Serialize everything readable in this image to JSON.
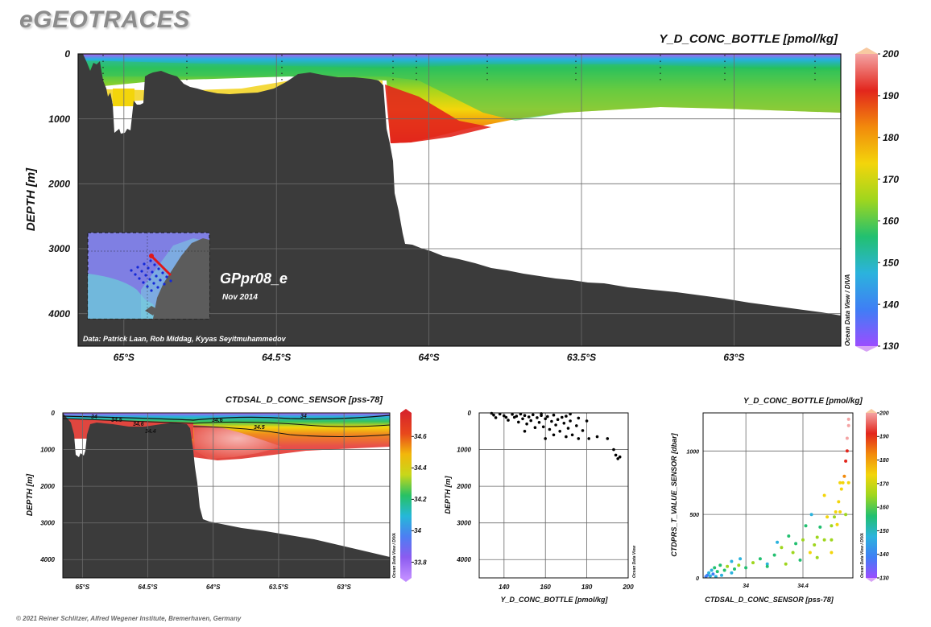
{
  "brand": "eGEOTRACES",
  "copyright": "© 2021 Reiner Schlitzer, Alfred Wegener Institute, Bremerhaven, Germany",
  "watermark": "Ocean Data View / DIVA",
  "watermark_small": "Ocean Data View",
  "section": {
    "name": "GPpr08_e",
    "date": "Nov 2014",
    "credit": "Data: Patrick Laan, Rob Middag, Kyyas Seyitmuhammedov"
  },
  "chart_data": [
    {
      "id": "main",
      "type": "heatmap",
      "title": "Y_D_CONC_BOTTLE [pmol/kg]",
      "ylabel": "DEPTH [m]",
      "xlabel": "",
      "x_range": [
        -65.15,
        -62.65
      ],
      "ylim": [
        0,
        4500
      ],
      "y_ticks": [
        0,
        1000,
        2000,
        3000,
        4000
      ],
      "x_ticks": [
        {
          "value": -65.0,
          "label": "65°S"
        },
        {
          "value": -64.5,
          "label": "64.5°S"
        },
        {
          "value": -64.0,
          "label": "64°S"
        },
        {
          "value": -63.5,
          "label": "63.5°S"
        },
        {
          "value": -63.0,
          "label": "63°S"
        }
      ],
      "colorbar": {
        "min": 130,
        "max": 200,
        "ticks": [
          130,
          140,
          150,
          160,
          170,
          180,
          190,
          200
        ],
        "colors": [
          "#9b4dff",
          "#3f7ef5",
          "#2bb3dd",
          "#22c070",
          "#9fd61e",
          "#f3d50b",
          "#f28a0c",
          "#e2261c",
          "#f4a3a3"
        ]
      },
      "grid": true
    },
    {
      "id": "sal",
      "type": "heatmap",
      "title": "CTDSAL_D_CONC_SENSOR [pss-78]",
      "ylabel": "DEPTH [m]",
      "x_range": [
        -65.15,
        -62.65
      ],
      "ylim": [
        0,
        4500
      ],
      "y_ticks": [
        0,
        1000,
        2000,
        3000,
        4000
      ],
      "x_ticks": [
        {
          "value": -65.0,
          "label": "65°S"
        },
        {
          "value": -64.5,
          "label": "64.5°S"
        },
        {
          "value": -64.0,
          "label": "64°S"
        },
        {
          "value": -63.5,
          "label": "63.5°S"
        },
        {
          "value": -63.0,
          "label": "63°S"
        }
      ],
      "colorbar": {
        "min": 33.7,
        "max": 34.75,
        "ticks": [
          33.8,
          34,
          34.2,
          34.4,
          34.6
        ],
        "colors": [
          "#c08cff",
          "#8b5bf0",
          "#4d7ef2",
          "#25b8d8",
          "#27c164",
          "#c8d71a",
          "#f2b70b",
          "#e8481c",
          "#d8262a"
        ]
      },
      "contour_labels": [
        "34",
        "34.5",
        "34.6",
        "34.5",
        "34.6",
        "34.4",
        "34"
      ],
      "grid": true
    },
    {
      "id": "profile",
      "type": "scatter",
      "xlabel": "Y_D_CONC_BOTTLE [pmol/kg]",
      "ylabel": "DEPTH [m]",
      "xlim": [
        128,
        200
      ],
      "ylim": [
        0,
        4500
      ],
      "x_ticks": [
        140,
        160,
        180,
        200
      ],
      "y_ticks": [
        0,
        1000,
        2000,
        3000,
        4000
      ],
      "points": [
        [
          134,
          10
        ],
        [
          135,
          60
        ],
        [
          136,
          130
        ],
        [
          138,
          30
        ],
        [
          140,
          80
        ],
        [
          142,
          200
        ],
        [
          144,
          40
        ],
        [
          145,
          120
        ],
        [
          146,
          90
        ],
        [
          147,
          250
        ],
        [
          148,
          30
        ],
        [
          149,
          160
        ],
        [
          150,
          70
        ],
        [
          151,
          300
        ],
        [
          152,
          110
        ],
        [
          153,
          210
        ],
        [
          154,
          50
        ],
        [
          155,
          400
        ],
        [
          156,
          130
        ],
        [
          157,
          260
        ],
        [
          158,
          70
        ],
        [
          159,
          380
        ],
        [
          160,
          160
        ],
        [
          161,
          100
        ],
        [
          162,
          450
        ],
        [
          163,
          230
        ],
        [
          164,
          60
        ],
        [
          165,
          330
        ],
        [
          166,
          180
        ],
        [
          167,
          500
        ],
        [
          168,
          120
        ],
        [
          169,
          280
        ],
        [
          170,
          90
        ],
        [
          171,
          420
        ],
        [
          172,
          220
        ],
        [
          173,
          600
        ],
        [
          175,
          350
        ],
        [
          176,
          140
        ],
        [
          178,
          480
        ],
        [
          180,
          220
        ],
        [
          181,
          700
        ],
        [
          185,
          650
        ],
        [
          190,
          700
        ],
        [
          193,
          1000
        ],
        [
          194,
          1150
        ],
        [
          195,
          1250
        ],
        [
          196,
          1200
        ],
        [
          172,
          30
        ],
        [
          158,
          20
        ],
        [
          164,
          600
        ],
        [
          170,
          650
        ],
        [
          176,
          700
        ],
        [
          150,
          500
        ],
        [
          160,
          700
        ],
        [
          141,
          120
        ]
      ]
    },
    {
      "id": "tscatter",
      "type": "scatter",
      "title": "Y_D_CONC_BOTTLE [pmol/kg]",
      "xlabel": "CTDSAL_D_CONC_SENSOR [pss-78]",
      "ylabel": "CTDPRS_T_VALUE_SENSOR [dbar]",
      "xlim": [
        33.7,
        34.75
      ],
      "ylim": [
        0,
        1300
      ],
      "x_ticks": [
        34,
        34.4
      ],
      "y_ticks": [
        0,
        500,
        1000
      ],
      "colorbar": {
        "min": 130,
        "max": 200,
        "ticks": [
          130,
          140,
          150,
          160,
          170,
          180,
          190,
          200
        ],
        "colors": [
          "#9b4dff",
          "#3f7ef5",
          "#2bb3dd",
          "#22c070",
          "#9fd61e",
          "#f3d50b",
          "#f28a0c",
          "#e2261c",
          "#f4a3a3"
        ]
      },
      "points": [
        [
          33.72,
          10,
          140
        ],
        [
          33.73,
          20,
          142
        ],
        [
          33.74,
          40,
          145
        ],
        [
          33.75,
          15,
          150
        ],
        [
          33.76,
          60,
          148
        ],
        [
          33.77,
          30,
          141
        ],
        [
          33.78,
          80,
          155
        ],
        [
          33.79,
          10,
          145
        ],
        [
          33.8,
          50,
          152
        ],
        [
          33.82,
          100,
          160
        ],
        [
          33.83,
          20,
          150
        ],
        [
          33.85,
          60,
          158
        ],
        [
          33.87,
          90,
          162
        ],
        [
          33.9,
          40,
          150
        ],
        [
          33.92,
          70,
          160
        ],
        [
          33.95,
          100,
          165
        ],
        [
          34.0,
          80,
          155
        ],
        [
          34.05,
          120,
          162
        ],
        [
          34.1,
          150,
          158
        ],
        [
          34.15,
          110,
          145
        ],
        [
          34.2,
          180,
          160
        ],
        [
          34.22,
          280,
          150
        ],
        [
          34.25,
          240,
          162
        ],
        [
          34.3,
          330,
          158
        ],
        [
          34.33,
          200,
          168
        ],
        [
          34.35,
          270,
          160
        ],
        [
          34.4,
          300,
          165
        ],
        [
          34.42,
          410,
          152
        ],
        [
          34.45,
          200,
          170
        ],
        [
          34.48,
          260,
          162
        ],
        [
          34.5,
          320,
          168
        ],
        [
          34.52,
          400,
          158
        ],
        [
          34.55,
          300,
          163
        ],
        [
          34.57,
          480,
          170
        ],
        [
          34.6,
          410,
          162
        ],
        [
          34.62,
          480,
          166
        ],
        [
          34.63,
          520,
          172
        ],
        [
          34.65,
          600,
          175
        ],
        [
          34.66,
          750,
          178
        ],
        [
          34.67,
          700,
          175
        ],
        [
          34.68,
          750,
          172
        ],
        [
          34.69,
          800,
          180
        ],
        [
          34.7,
          920,
          190
        ],
        [
          34.71,
          1000,
          195
        ],
        [
          34.71,
          1100,
          197
        ],
        [
          34.72,
          1200,
          198
        ],
        [
          34.72,
          1250,
          196
        ],
        [
          34.6,
          200,
          170
        ],
        [
          34.5,
          160,
          165
        ],
        [
          34.38,
          140,
          160
        ],
        [
          34.28,
          110,
          165
        ],
        [
          34.15,
          90,
          155
        ],
        [
          33.96,
          150,
          150
        ],
        [
          33.9,
          130,
          148
        ],
        [
          34.46,
          500,
          150
        ],
        [
          34.55,
          650,
          175
        ],
        [
          34.64,
          420,
          172
        ],
        [
          34.66,
          520,
          170
        ],
        [
          34.7,
          500,
          168
        ],
        [
          34.72,
          750,
          176
        ],
        [
          34.6,
          300,
          168
        ]
      ]
    }
  ]
}
